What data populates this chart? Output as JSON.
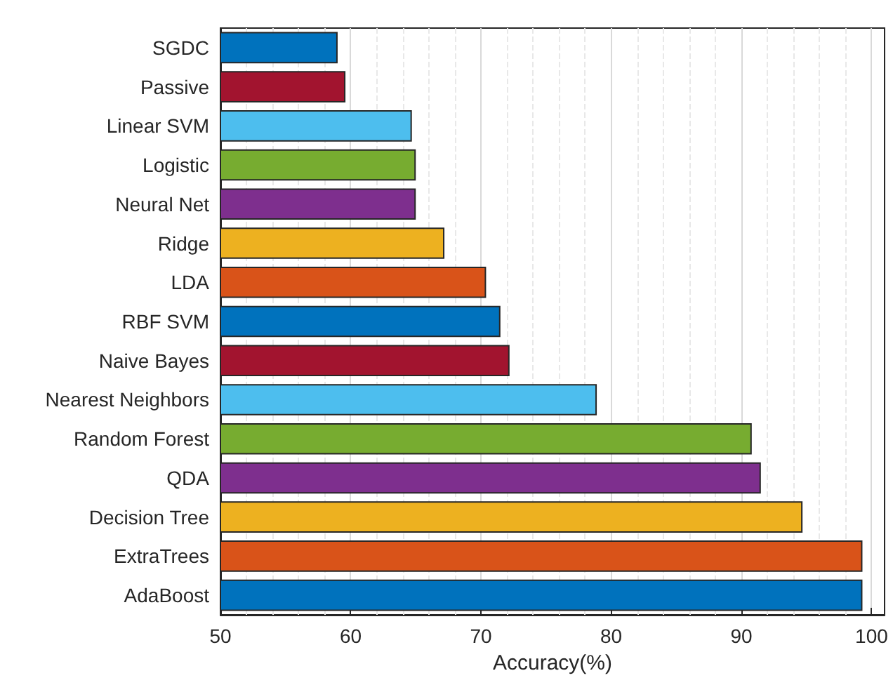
{
  "chart_data": {
    "type": "bar",
    "orientation": "horizontal",
    "xlabel": "Accuracy(%)",
    "categories": [
      "SGDC",
      "Passive",
      "Linear SVM",
      "Logistic",
      "Neural Net",
      "Ridge",
      "LDA",
      "RBF SVM",
      "Naive Bayes",
      "Nearest Neighbors",
      "Random Forest",
      "QDA",
      "Decision Tree",
      "ExtraTrees",
      "AdaBoost"
    ],
    "values": [
      59.0,
      59.6,
      64.7,
      65.0,
      65.0,
      67.2,
      70.4,
      71.5,
      72.2,
      78.9,
      90.8,
      91.5,
      94.7,
      99.3,
      99.3
    ],
    "colors": [
      "#0072bd",
      "#a2142f",
      "#4dbeee",
      "#77ac30",
      "#7e2f8e",
      "#edb120",
      "#d95319",
      "#0072bd",
      "#a2142f",
      "#4dbeee",
      "#77ac30",
      "#7e2f8e",
      "#edb120",
      "#d95319",
      "#0072bd"
    ],
    "xlim": [
      50,
      101
    ],
    "xticks": [
      50,
      60,
      70,
      80,
      90,
      100
    ],
    "grid": true
  }
}
